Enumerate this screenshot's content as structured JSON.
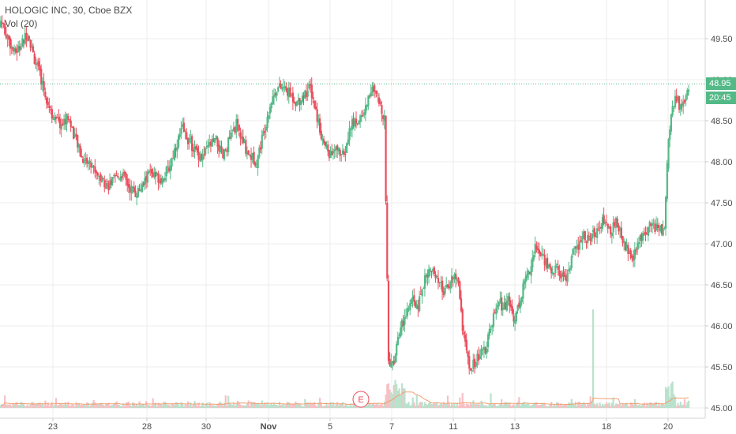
{
  "legend": {
    "title": "HOLOGIC INC, 30, Cboe BZX",
    "indicator": "Vol (20)"
  },
  "price_tags": {
    "last_price": "48.95",
    "countdown": "20:45"
  },
  "earnings_marker": "E",
  "colors": {
    "up": "#53b987",
    "down": "#eb4d5c",
    "volume_up": "#b9e2cd",
    "volume_down": "#f7c0c5",
    "volume_ma": "#f0a070",
    "last_price_line": "#53b987",
    "grid": "#ececec"
  },
  "chart_data": {
    "type": "candlestick",
    "symbol": "HOLOGIC INC",
    "interval": "30",
    "exchange": "Cboe BZX",
    "last_price": 48.95,
    "y_ticks": [
      "49.50",
      "49.00",
      "48.50",
      "48.00",
      "47.50",
      "47.00",
      "46.50",
      "46.00",
      "45.50",
      "45.00"
    ],
    "x_ticks": [
      "23",
      "28",
      "30",
      "Nov",
      "5",
      "7",
      "11",
      "13",
      "18",
      "20"
    ],
    "ylim": [
      44.95,
      49.95
    ],
    "anchors": [
      [
        0,
        49.72
      ],
      [
        5,
        49.52
      ],
      [
        10,
        49.32
      ],
      [
        15,
        49.42
      ],
      [
        20,
        49.58
      ],
      [
        25,
        49.25
      ],
      [
        30,
        49.0
      ],
      [
        35,
        48.72
      ],
      [
        40,
        48.5
      ],
      [
        45,
        48.45
      ],
      [
        50,
        48.55
      ],
      [
        55,
        48.3
      ],
      [
        60,
        48.05
      ],
      [
        65,
        48.0
      ],
      [
        70,
        47.9
      ],
      [
        75,
        47.78
      ],
      [
        80,
        47.72
      ],
      [
        85,
        47.78
      ],
      [
        90,
        47.86
      ],
      [
        95,
        47.7
      ],
      [
        100,
        47.62
      ],
      [
        105,
        47.68
      ],
      [
        110,
        47.88
      ],
      [
        115,
        47.82
      ],
      [
        120,
        47.8
      ],
      [
        125,
        47.92
      ],
      [
        130,
        48.2
      ],
      [
        135,
        48.4
      ],
      [
        140,
        48.25
      ],
      [
        145,
        48.12
      ],
      [
        150,
        48.05
      ],
      [
        155,
        48.2
      ],
      [
        160,
        48.25
      ],
      [
        165,
        48.05
      ],
      [
        170,
        48.28
      ],
      [
        175,
        48.45
      ],
      [
        180,
        48.22
      ],
      [
        185,
        48.08
      ],
      [
        190,
        48.0
      ],
      [
        195,
        48.35
      ],
      [
        200,
        48.7
      ],
      [
        205,
        48.9
      ],
      [
        210,
        48.9
      ],
      [
        215,
        48.82
      ],
      [
        220,
        48.72
      ],
      [
        225,
        48.82
      ],
      [
        230,
        48.9
      ],
      [
        235,
        48.55
      ],
      [
        240,
        48.2
      ],
      [
        245,
        48.08
      ],
      [
        250,
        48.15
      ],
      [
        255,
        48.05
      ],
      [
        260,
        48.45
      ],
      [
        265,
        48.5
      ],
      [
        270,
        48.6
      ],
      [
        275,
        48.9
      ],
      [
        280,
        48.75
      ],
      [
        285,
        48.55
      ],
      [
        288,
        45.55
      ],
      [
        292,
        45.6
      ],
      [
        295,
        45.9
      ],
      [
        300,
        46.1
      ],
      [
        305,
        46.3
      ],
      [
        310,
        46.25
      ],
      [
        315,
        46.6
      ],
      [
        320,
        46.7
      ],
      [
        325,
        46.5
      ],
      [
        330,
        46.4
      ],
      [
        335,
        46.6
      ],
      [
        340,
        46.55
      ],
      [
        343,
        46.0
      ],
      [
        348,
        45.45
      ],
      [
        352,
        45.55
      ],
      [
        356,
        45.65
      ],
      [
        360,
        45.7
      ],
      [
        363,
        45.9
      ],
      [
        366,
        46.1
      ],
      [
        370,
        46.3
      ],
      [
        373,
        46.22
      ],
      [
        377,
        46.3
      ],
      [
        381,
        46.1
      ],
      [
        385,
        46.25
      ],
      [
        389,
        46.55
      ],
      [
        393,
        46.7
      ],
      [
        397,
        46.95
      ],
      [
        401,
        46.88
      ],
      [
        405,
        46.78
      ],
      [
        409,
        46.65
      ],
      [
        413,
        46.7
      ],
      [
        417,
        46.6
      ],
      [
        421,
        46.62
      ],
      [
        425,
        46.88
      ],
      [
        429,
        46.95
      ],
      [
        433,
        47.1
      ],
      [
        437,
        47.05
      ],
      [
        441,
        47.12
      ],
      [
        445,
        47.25
      ],
      [
        449,
        47.28
      ],
      [
        453,
        47.15
      ],
      [
        457,
        47.25
      ],
      [
        461,
        47.1
      ],
      [
        465,
        46.95
      ],
      [
        469,
        46.8
      ],
      [
        473,
        46.95
      ],
      [
        477,
        47.15
      ],
      [
        481,
        47.2
      ],
      [
        485,
        47.22
      ],
      [
        489,
        47.18
      ],
      [
        493,
        47.15
      ],
      [
        496,
        48.3
      ],
      [
        499,
        48.7
      ],
      [
        502,
        48.8
      ],
      [
        505,
        48.65
      ],
      [
        508,
        48.72
      ],
      [
        511,
        48.95
      ]
    ]
  }
}
